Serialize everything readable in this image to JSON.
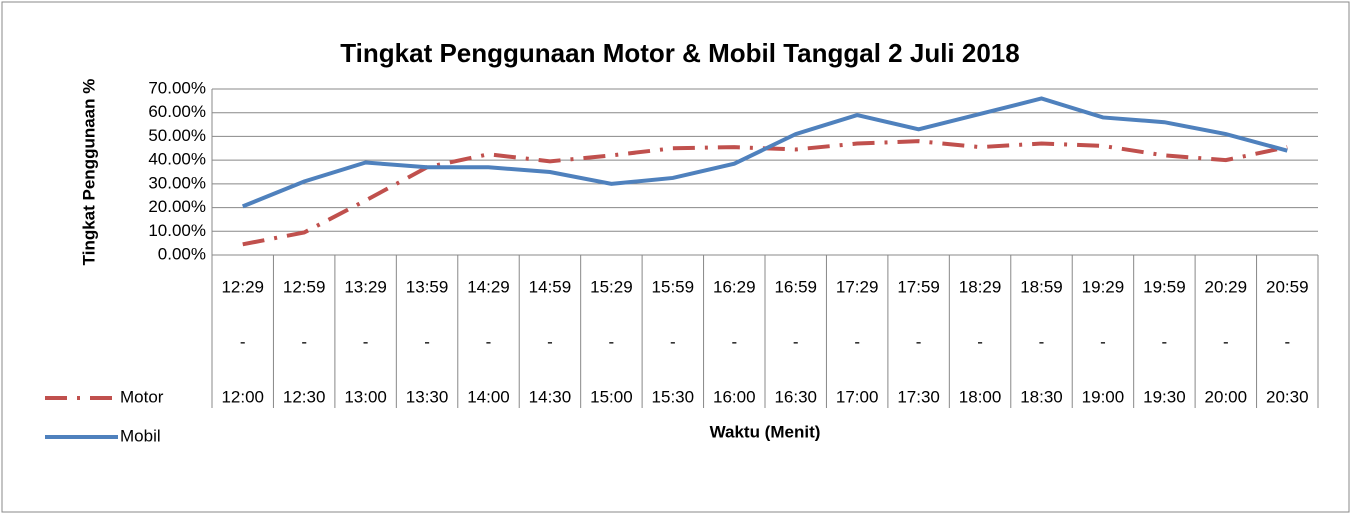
{
  "chart_data": {
    "type": "line",
    "title": "Tingkat Penggunaan Motor & Mobil Tanggal 2 Juli 2018",
    "x_label": "Waktu (Menit)",
    "y_label": "Tingkat Penggunaan %",
    "categories": [
      [
        "12:29",
        "-",
        "12:00"
      ],
      [
        "12:59",
        "-",
        "12:30"
      ],
      [
        "13:29",
        "-",
        "13:00"
      ],
      [
        "13:59",
        "-",
        "13:30"
      ],
      [
        "14:29",
        "-",
        "14:00"
      ],
      [
        "14:59",
        "-",
        "14:30"
      ],
      [
        "15:29",
        "-",
        "15:00"
      ],
      [
        "15:59",
        "-",
        "15:30"
      ],
      [
        "16:29",
        "-",
        "16:00"
      ],
      [
        "16:59",
        "-",
        "16:30"
      ],
      [
        "17:29",
        "-",
        "17:00"
      ],
      [
        "17:59",
        "-",
        "17:30"
      ],
      [
        "18:29",
        "-",
        "18:00"
      ],
      [
        "18:59",
        "-",
        "18:30"
      ],
      [
        "19:29",
        "-",
        "19:00"
      ],
      [
        "19:59",
        "-",
        "19:30"
      ],
      [
        "20:29",
        "-",
        "20:00"
      ],
      [
        "20:59",
        "-",
        "20:30"
      ]
    ],
    "series": [
      {
        "name": "Motor",
        "color": "#c0504d",
        "dash": "dash-dot",
        "values": [
          4.5,
          9.5,
          23,
          37,
          42.5,
          39.5,
          42,
          45,
          45.5,
          44.5,
          47,
          48,
          45.5,
          47,
          46,
          42,
          40,
          45.5
        ]
      },
      {
        "name": "Mobil",
        "color": "#4f81bd",
        "dash": "solid",
        "values": [
          20.5,
          31,
          39,
          37,
          37,
          35,
          30,
          32.5,
          38.5,
          51,
          59,
          53,
          59.5,
          66,
          58,
          56,
          51,
          44
        ]
      }
    ],
    "ylim": [
      0,
      70
    ],
    "yticks": [
      {
        "value": 0,
        "label": "0.00%"
      },
      {
        "value": 10,
        "label": "10.00%"
      },
      {
        "value": 20,
        "label": "20.00%"
      },
      {
        "value": 30,
        "label": "30.00%"
      },
      {
        "value": 40,
        "label": "40.00%"
      },
      {
        "value": 50,
        "label": "50.00%"
      },
      {
        "value": 60,
        "label": "60.00%"
      },
      {
        "value": 70,
        "label": "70.00%"
      }
    ],
    "grid": true,
    "legend": "bottom-left"
  }
}
